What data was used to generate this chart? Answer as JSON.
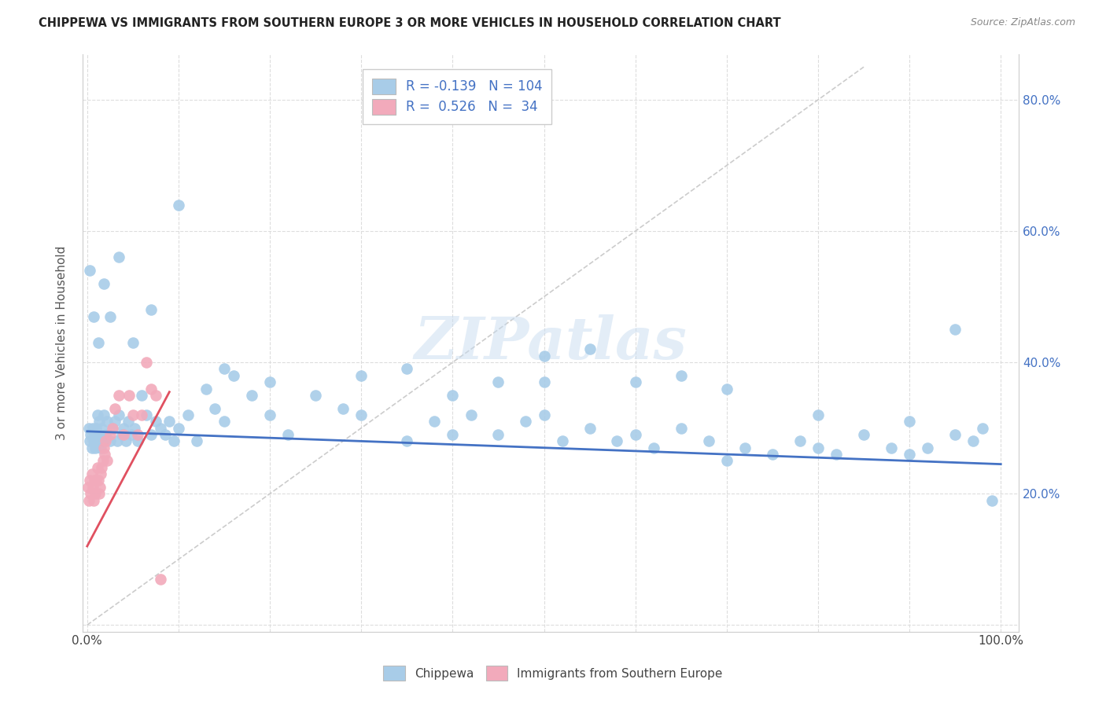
{
  "title": "CHIPPEWA VS IMMIGRANTS FROM SOUTHERN EUROPE 3 OR MORE VEHICLES IN HOUSEHOLD CORRELATION CHART",
  "source": "Source: ZipAtlas.com",
  "ylabel": "3 or more Vehicles in Household",
  "r1": -0.139,
  "n1": 104,
  "r2": 0.526,
  "n2": 34,
  "color_blue": "#A8CCE8",
  "color_pink": "#F2AABB",
  "color_line_blue": "#4472C4",
  "color_line_pink": "#E05060",
  "color_diag": "#CCCCCC",
  "background_color": "#FFFFFF",
  "watermark": "ZIPatlas",
  "xlim": [
    0.0,
    1.0
  ],
  "ylim": [
    0.0,
    0.85
  ],
  "ytick_positions": [
    0.0,
    0.2,
    0.4,
    0.6,
    0.8
  ],
  "ytick_labels": [
    "0.0%",
    "20.0%",
    "40.0%",
    "60.0%",
    "80.0%"
  ],
  "xtick_positions": [
    0.0,
    0.1,
    0.2,
    0.3,
    0.4,
    0.5,
    0.6,
    0.7,
    0.8,
    0.9,
    1.0
  ],
  "blue_line_x": [
    0.0,
    1.0
  ],
  "blue_line_y": [
    0.295,
    0.245
  ],
  "pink_line_x": [
    0.0,
    0.09
  ],
  "pink_line_y": [
    0.12,
    0.355
  ],
  "blue_x": [
    0.002,
    0.003,
    0.004,
    0.005,
    0.006,
    0.007,
    0.008,
    0.009,
    0.01,
    0.011,
    0.012,
    0.013,
    0.014,
    0.015,
    0.016,
    0.017,
    0.018,
    0.02,
    0.022,
    0.025,
    0.028,
    0.03,
    0.033,
    0.035,
    0.038,
    0.04,
    0.042,
    0.045,
    0.048,
    0.052,
    0.055,
    0.06,
    0.065,
    0.07,
    0.075,
    0.08,
    0.085,
    0.09,
    0.095,
    0.1,
    0.11,
    0.12,
    0.13,
    0.14,
    0.15,
    0.16,
    0.18,
    0.2,
    0.22,
    0.25,
    0.28,
    0.3,
    0.35,
    0.38,
    0.4,
    0.42,
    0.45,
    0.48,
    0.5,
    0.52,
    0.55,
    0.58,
    0.6,
    0.62,
    0.65,
    0.68,
    0.7,
    0.72,
    0.75,
    0.78,
    0.8,
    0.82,
    0.85,
    0.88,
    0.9,
    0.92,
    0.95,
    0.97,
    0.98,
    0.99,
    0.003,
    0.007,
    0.012,
    0.018,
    0.025,
    0.035,
    0.05,
    0.07,
    0.1,
    0.15,
    0.2,
    0.3,
    0.4,
    0.5,
    0.6,
    0.7,
    0.8,
    0.9,
    0.95,
    0.5,
    0.55,
    0.35,
    0.45,
    0.65
  ],
  "blue_y": [
    0.3,
    0.28,
    0.29,
    0.27,
    0.3,
    0.28,
    0.29,
    0.27,
    0.3,
    0.32,
    0.28,
    0.31,
    0.29,
    0.27,
    0.3,
    0.28,
    0.32,
    0.29,
    0.31,
    0.28,
    0.3,
    0.31,
    0.28,
    0.32,
    0.29,
    0.3,
    0.28,
    0.31,
    0.29,
    0.3,
    0.28,
    0.35,
    0.32,
    0.29,
    0.31,
    0.3,
    0.29,
    0.31,
    0.28,
    0.3,
    0.32,
    0.28,
    0.36,
    0.33,
    0.31,
    0.38,
    0.35,
    0.32,
    0.29,
    0.35,
    0.33,
    0.32,
    0.28,
    0.31,
    0.29,
    0.32,
    0.29,
    0.31,
    0.32,
    0.28,
    0.3,
    0.28,
    0.29,
    0.27,
    0.3,
    0.28,
    0.25,
    0.27,
    0.26,
    0.28,
    0.27,
    0.26,
    0.29,
    0.27,
    0.26,
    0.27,
    0.29,
    0.28,
    0.3,
    0.19,
    0.54,
    0.47,
    0.43,
    0.52,
    0.47,
    0.56,
    0.43,
    0.48,
    0.64,
    0.39,
    0.37,
    0.38,
    0.35,
    0.37,
    0.37,
    0.36,
    0.32,
    0.31,
    0.45,
    0.41,
    0.42,
    0.39,
    0.37,
    0.38
  ],
  "pink_x": [
    0.001,
    0.002,
    0.003,
    0.004,
    0.005,
    0.006,
    0.007,
    0.008,
    0.009,
    0.01,
    0.011,
    0.012,
    0.013,
    0.014,
    0.015,
    0.016,
    0.017,
    0.018,
    0.019,
    0.02,
    0.022,
    0.025,
    0.028,
    0.03,
    0.035,
    0.04,
    0.046,
    0.05,
    0.055,
    0.06,
    0.065,
    0.07,
    0.075,
    0.08
  ],
  "pink_y": [
    0.21,
    0.19,
    0.22,
    0.2,
    0.23,
    0.21,
    0.19,
    0.22,
    0.2,
    0.22,
    0.24,
    0.22,
    0.2,
    0.21,
    0.23,
    0.24,
    0.25,
    0.27,
    0.26,
    0.28,
    0.25,
    0.29,
    0.3,
    0.33,
    0.35,
    0.29,
    0.35,
    0.32,
    0.29,
    0.32,
    0.4,
    0.36,
    0.35,
    0.07
  ]
}
